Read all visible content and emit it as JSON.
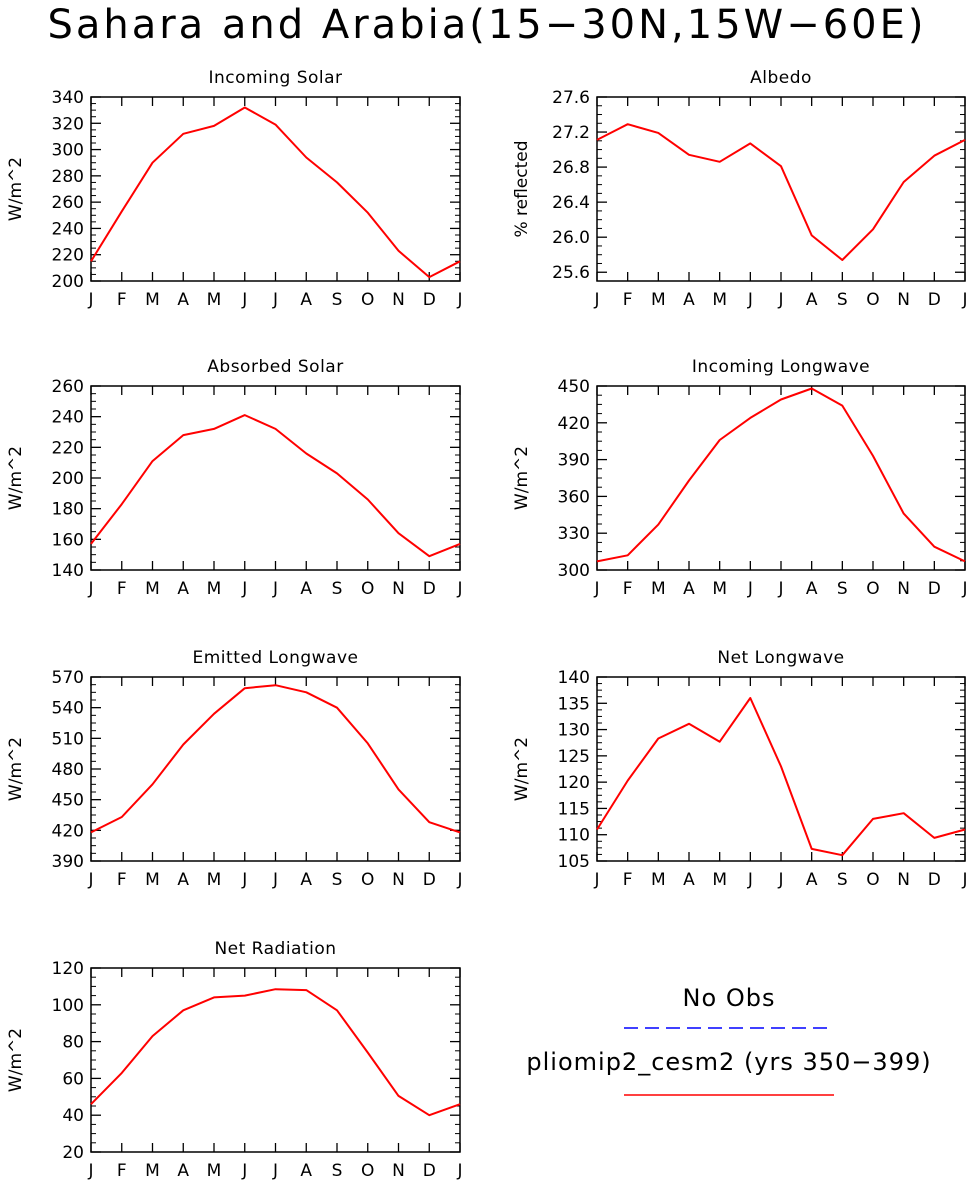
{
  "title": "Sahara and Arabia(15−30N,15W−60E)",
  "months": [
    "J",
    "F",
    "M",
    "A",
    "M",
    "J",
    "J",
    "A",
    "S",
    "O",
    "N",
    "D",
    "J"
  ],
  "colors": {
    "model": "#ff0000",
    "obs": "#0000ff",
    "axis": "#000000"
  },
  "legend": {
    "obs_label": "No Obs",
    "model_label": "pliomip2_cesm2 (yrs 350−399)"
  },
  "chart_data": [
    {
      "type": "line",
      "title": "Incoming Solar",
      "ylabel": "W/m^2",
      "categories": [
        "J",
        "F",
        "M",
        "A",
        "M",
        "J",
        "J",
        "A",
        "S",
        "O",
        "N",
        "D",
        "J"
      ],
      "ylim": [
        200,
        340
      ],
      "yticks": [
        200,
        220,
        240,
        260,
        280,
        300,
        320,
        340
      ],
      "series": [
        {
          "values": [
            215,
            253,
            290,
            312,
            318,
            332,
            319,
            294,
            275,
            252,
            223,
            203,
            215
          ]
        }
      ]
    },
    {
      "type": "line",
      "title": "Albedo",
      "ylabel": "% reflected",
      "categories": [
        "J",
        "F",
        "M",
        "A",
        "M",
        "J",
        "J",
        "A",
        "S",
        "O",
        "N",
        "D",
        "J"
      ],
      "ylim": [
        25.5,
        27.6
      ],
      "yticks": [
        25.6,
        26.0,
        26.4,
        26.8,
        27.2,
        27.6
      ],
      "yticklabels": [
        "25.6",
        "26.0",
        "26.4",
        "26.8",
        "27.2",
        "27.6"
      ],
      "series": [
        {
          "values": [
            27.11,
            27.29,
            27.19,
            26.94,
            26.86,
            27.07,
            26.81,
            26.02,
            25.74,
            26.09,
            26.63,
            26.93,
            27.11
          ]
        }
      ]
    },
    {
      "type": "line",
      "title": "Absorbed Solar",
      "ylabel": "W/m^2",
      "categories": [
        "J",
        "F",
        "M",
        "A",
        "M",
        "J",
        "J",
        "A",
        "S",
        "O",
        "N",
        "D",
        "J"
      ],
      "ylim": [
        140,
        260
      ],
      "yticks": [
        140,
        160,
        180,
        200,
        220,
        240,
        260
      ],
      "series": [
        {
          "values": [
            157,
            183,
            211,
            228,
            232,
            241,
            232,
            216,
            203,
            186,
            164,
            149,
            157
          ]
        }
      ]
    },
    {
      "type": "line",
      "title": "Incoming Longwave",
      "ylabel": "W/m^2",
      "categories": [
        "J",
        "F",
        "M",
        "A",
        "M",
        "J",
        "J",
        "A",
        "S",
        "O",
        "N",
        "D",
        "J"
      ],
      "ylim": [
        300,
        450
      ],
      "yticks": [
        300,
        330,
        360,
        390,
        420,
        450
      ],
      "series": [
        {
          "values": [
            307,
            312,
            337,
            373,
            406,
            424,
            439,
            448,
            434,
            393,
            346,
            319,
            307
          ]
        }
      ]
    },
    {
      "type": "line",
      "title": "Emitted Longwave",
      "ylabel": "W/m^2",
      "categories": [
        "J",
        "F",
        "M",
        "A",
        "M",
        "J",
        "J",
        "A",
        "S",
        "O",
        "N",
        "D",
        "J"
      ],
      "ylim": [
        390,
        570
      ],
      "yticks": [
        390,
        420,
        450,
        480,
        510,
        540,
        570
      ],
      "series": [
        {
          "values": [
            418,
            433,
            465,
            504,
            534,
            559,
            562,
            555,
            540,
            505,
            460,
            428,
            418
          ]
        }
      ]
    },
    {
      "type": "line",
      "title": "Net Longwave",
      "ylabel": "W/m^2",
      "categories": [
        "J",
        "F",
        "M",
        "A",
        "M",
        "J",
        "J",
        "A",
        "S",
        "O",
        "N",
        "D",
        "J"
      ],
      "ylim": [
        105,
        140
      ],
      "yticks": [
        105,
        110,
        115,
        120,
        125,
        130,
        135,
        140
      ],
      "series": [
        {
          "values": [
            111,
            120.3,
            128.3,
            131.1,
            127.7,
            136,
            123,
            107.3,
            106.1,
            113,
            114.1,
            109.4,
            111
          ]
        }
      ]
    },
    {
      "type": "line",
      "title": "Net Radiation",
      "ylabel": "W/m^2",
      "categories": [
        "J",
        "F",
        "M",
        "A",
        "M",
        "J",
        "J",
        "A",
        "S",
        "O",
        "N",
        "D",
        "J"
      ],
      "ylim": [
        20,
        120
      ],
      "yticks": [
        20,
        40,
        60,
        80,
        100,
        120
      ],
      "series": [
        {
          "values": [
            46,
            63,
            83,
            97,
            104,
            105,
            108.5,
            108,
            97,
            74,
            50.5,
            40,
            46
          ]
        }
      ]
    }
  ]
}
